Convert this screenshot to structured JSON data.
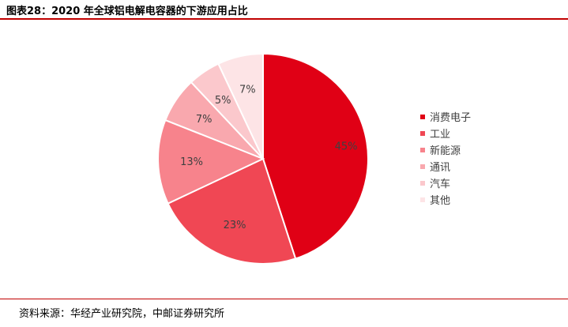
{
  "header": {
    "title": "图表28：2020 年全球铝电解电容器的下游应用占比",
    "accent_color": "#c00000"
  },
  "source": {
    "text": "资料来源：华经产业研究院，中邮证券研究所"
  },
  "chart_data": {
    "type": "pie",
    "categories": [
      "消费电子",
      "工业",
      "新能源",
      "通讯",
      "汽车",
      "其他"
    ],
    "values": [
      45,
      23,
      13,
      7,
      5,
      7
    ],
    "labels": [
      "45%",
      "23%",
      "13%",
      "7%",
      "5%",
      "7%"
    ],
    "colors": [
      "#e00015",
      "#f04754",
      "#f7838c",
      "#f9a8ae",
      "#fbc8cc",
      "#fde4e6"
    ],
    "start_angle": "12 o'clock",
    "direction": "clockwise",
    "legend_position": "right",
    "title": "",
    "xlabel": "",
    "ylabel": ""
  }
}
